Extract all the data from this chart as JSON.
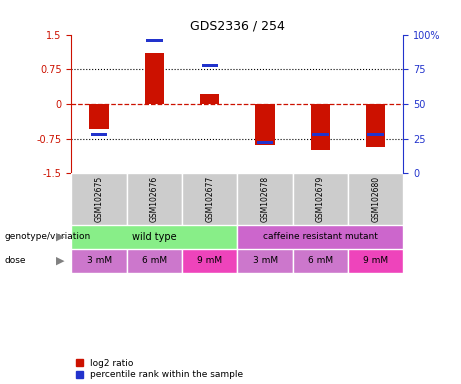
{
  "title": "GDS2336 / 254",
  "samples": [
    "GSM102675",
    "GSM102676",
    "GSM102677",
    "GSM102678",
    "GSM102679",
    "GSM102680"
  ],
  "log2_ratio": [
    -0.55,
    1.1,
    0.22,
    -0.88,
    -1.0,
    -0.93
  ],
  "percentile_rank": [
    28,
    96,
    78,
    22,
    28,
    28
  ],
  "bar_color": "#cc1100",
  "dot_color": "#2233cc",
  "ylim": [
    -1.5,
    1.5
  ],
  "yticks_left": [
    -1.5,
    -0.75,
    0,
    0.75,
    1.5
  ],
  "yticks_right_vals": [
    0,
    25,
    50,
    75,
    100
  ],
  "yticks_right_labels": [
    "0",
    "25",
    "50",
    "75",
    "100%"
  ],
  "wild_type_color": "#88ee88",
  "mutant_color": "#cc66cc",
  "dose_colors": [
    "#cc77cc",
    "#cc77cc",
    "#ee44bb",
    "#cc77cc",
    "#cc77cc",
    "#ee44bb"
  ],
  "sample_bg_color": "#cccccc",
  "bar_width": 0.35,
  "dose": [
    "3 mM",
    "6 mM",
    "9 mM",
    "3 mM",
    "6 mM",
    "9 mM"
  ],
  "legend_items": [
    "log2 ratio",
    "percentile rank within the sample"
  ]
}
